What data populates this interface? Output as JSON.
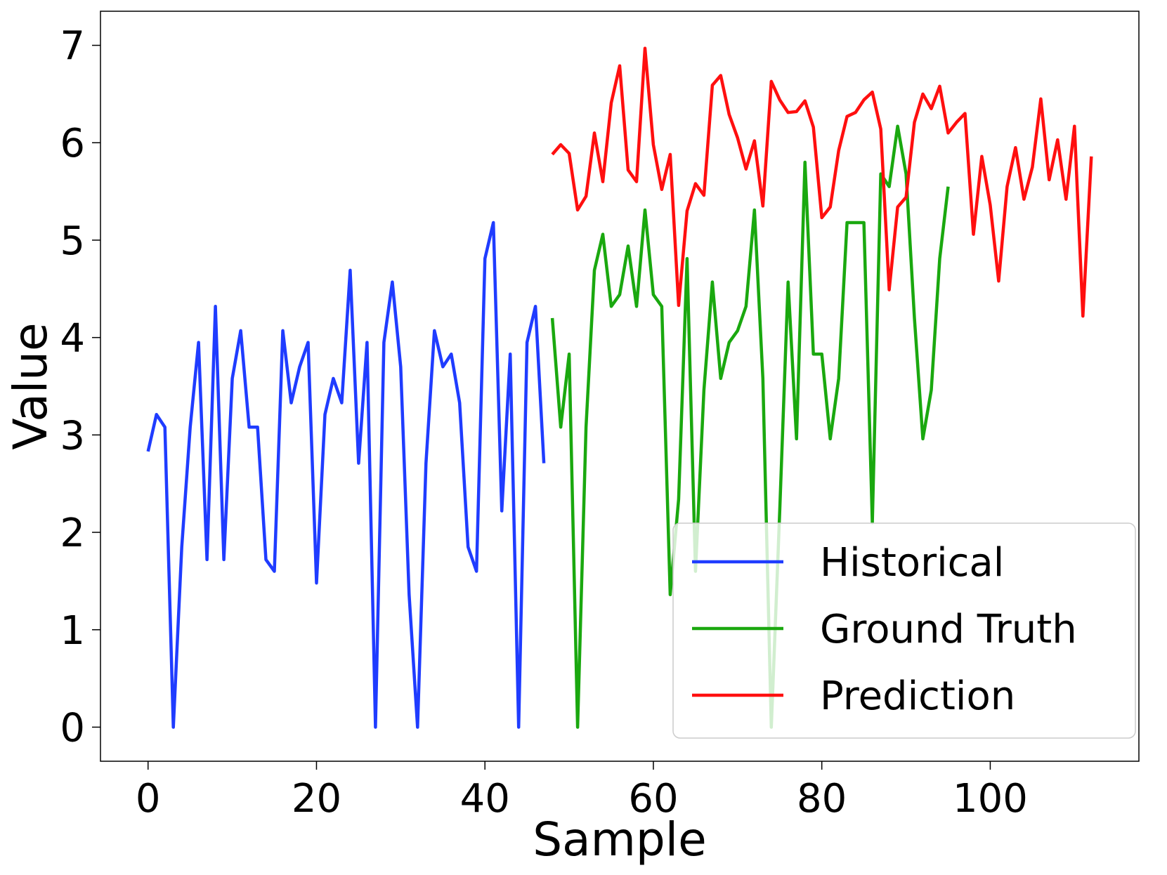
{
  "chart_data": {
    "type": "line",
    "xlabel": "Sample",
    "ylabel": "Value",
    "xlim": [
      -5.65,
      117.65
    ],
    "ylim": [
      -0.35,
      7.35
    ],
    "xticks": [
      0,
      20,
      40,
      60,
      80,
      100
    ],
    "yticks": [
      0,
      1,
      2,
      3,
      4,
      5,
      6,
      7
    ],
    "xtick_labels": [
      "0",
      "20",
      "40",
      "60",
      "80",
      "100"
    ],
    "ytick_labels": [
      "0",
      "1",
      "2",
      "3",
      "4",
      "5",
      "6",
      "7"
    ],
    "grid": false,
    "legend_position": "lower-right",
    "series": [
      {
        "name": "Historical",
        "color": "#1f3cff",
        "x_start": 0,
        "values": [
          2.83,
          3.21,
          3.08,
          0.0,
          1.85,
          3.08,
          3.95,
          1.72,
          4.32,
          1.72,
          3.58,
          4.07,
          3.08,
          3.08,
          1.72,
          1.6,
          4.07,
          3.33,
          3.7,
          3.95,
          1.48,
          3.21,
          3.58,
          3.33,
          4.69,
          2.71,
          3.95,
          0.0,
          3.95,
          4.57,
          3.7,
          1.36,
          0.0,
          2.71,
          4.07,
          3.7,
          3.83,
          3.33,
          1.85,
          1.6,
          4.81,
          5.18,
          2.22,
          3.83,
          0.0,
          3.95,
          4.32,
          2.71
        ]
      },
      {
        "name": "Ground Truth",
        "color": "#1aa80f",
        "x_start": 48,
        "values": [
          4.2,
          3.08,
          3.83,
          0.0,
          3.08,
          4.69,
          5.06,
          4.32,
          4.44,
          4.94,
          4.32,
          5.31,
          4.44,
          4.32,
          1.36,
          2.34,
          4.81,
          1.6,
          3.46,
          4.57,
          3.58,
          3.95,
          4.07,
          4.32,
          5.31,
          3.58,
          0.0,
          2.22,
          4.57,
          2.96,
          5.8,
          3.83,
          3.83,
          2.96,
          3.58,
          5.18,
          5.18,
          5.18,
          2.1,
          5.68,
          5.55,
          6.17,
          5.68,
          4.2,
          2.96,
          3.46,
          4.81,
          5.55
        ]
      },
      {
        "name": "Prediction",
        "color": "#ff0f0f",
        "x_start": 48,
        "values": [
          5.88,
          5.98,
          5.89,
          5.31,
          5.45,
          6.1,
          5.6,
          6.41,
          6.79,
          5.72,
          5.6,
          6.97,
          5.98,
          5.52,
          5.88,
          4.33,
          5.3,
          5.58,
          5.46,
          6.59,
          6.69,
          6.29,
          6.05,
          5.73,
          6.02,
          5.35,
          6.63,
          6.44,
          6.31,
          6.32,
          6.43,
          6.16,
          5.23,
          5.34,
          5.92,
          6.27,
          6.31,
          6.44,
          6.52,
          6.14,
          4.49,
          5.34,
          5.44,
          6.21,
          6.5,
          6.35,
          6.58,
          6.1,
          6.21,
          6.3,
          5.06,
          5.86,
          5.36,
          4.58,
          5.55,
          5.95,
          5.42,
          5.75,
          6.45,
          5.62,
          6.03,
          5.42,
          6.17,
          4.22,
          5.86
        ]
      }
    ]
  }
}
